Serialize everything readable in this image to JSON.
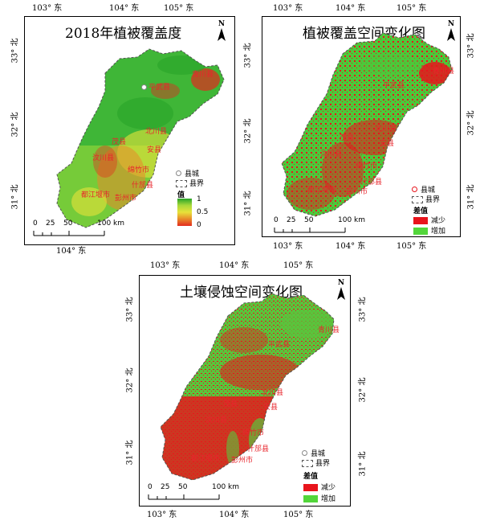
{
  "axes": {
    "lon": [
      "103°",
      "104°",
      "105°"
    ],
    "lon_suffix": "东",
    "lat": [
      "33°",
      "32°",
      "31°"
    ],
    "lat_suffix": "北"
  },
  "panels": {
    "p1": {
      "title": "2018年植被覆盖度",
      "legend": {
        "county": "县城",
        "border": "县界",
        "value_title": "值",
        "max": "1",
        "mid": "0.5",
        "min": "0"
      },
      "colors": [
        "#28a428",
        "#4fc53a",
        "#a8d93a",
        "#e8e23a",
        "#e88a2a",
        "#e32a1e"
      ]
    },
    "p2": {
      "title": "植被覆盖空间变化图",
      "legend": {
        "county": "县城",
        "border": "县界",
        "diff_title": "差值",
        "decrease": "减少",
        "increase": "增加"
      },
      "colors": {
        "decrease": "#e8141c",
        "increase": "#52d63a"
      }
    },
    "p3": {
      "title": "土壤侵蚀空间变化图",
      "legend": {
        "county": "县城",
        "border": "县界",
        "diff_title": "差值",
        "decrease": "减少",
        "increase": "增加"
      },
      "colors": {
        "decrease": "#e8141c",
        "increase": "#52d63a"
      }
    }
  },
  "scale": {
    "ticks": [
      "0",
      "25",
      "50",
      "100 km"
    ]
  },
  "north_label": "N",
  "counties": [
    "平武县",
    "青川县",
    "北川县",
    "茂县",
    "安县",
    "汶川县",
    "绵竹市",
    "什邡县",
    "都江堰市",
    "彭州市"
  ]
}
